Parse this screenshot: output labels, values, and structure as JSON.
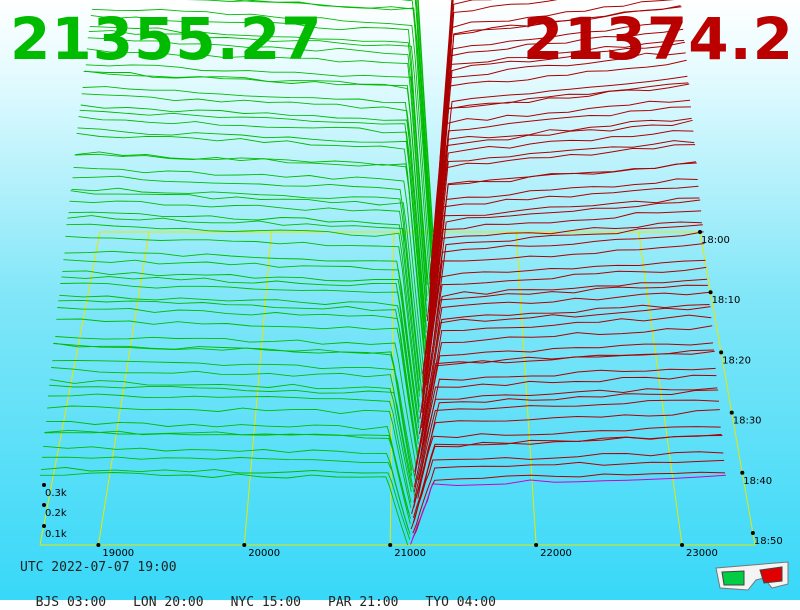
{
  "header": {
    "bid_price": "21355.27",
    "ask_price": "21374.2",
    "bid_color": "#00bb00",
    "ask_color": "#bb0000"
  },
  "chart_data": {
    "type": "3d-depth-history",
    "x_ticks": [
      "19000",
      "20000",
      "21000",
      "22000",
      "23000"
    ],
    "x_range": [
      18600,
      23500
    ],
    "y_ticks": [
      "0.1k",
      "0.2k",
      "0.3k"
    ],
    "time_ticks": [
      "18:00",
      "18:10",
      "18:20",
      "18:30",
      "18:40",
      "18:50"
    ],
    "bid_color": "#00bb00",
    "ask_color": "#aa0000",
    "latest_ask_color": "#cc00cc",
    "grid_color": "#e8e800"
  },
  "footer": {
    "utc": "UTC 2022-07-07 19:00",
    "zones": [
      "BJS 03:00",
      "LON 20:00",
      "NYC 15:00",
      "PAR 21:00",
      "TYO 04:00"
    ]
  },
  "icons": {
    "glasses": "3d-glasses-icon"
  }
}
